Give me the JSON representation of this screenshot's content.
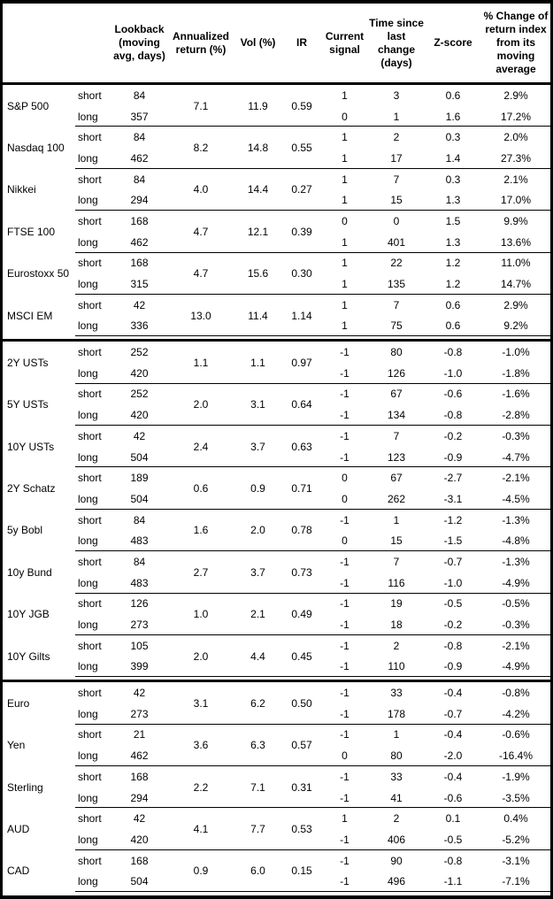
{
  "table": {
    "headers": {
      "lookback": "Lookback (moving avg, days)",
      "annualized": "Annualized return (%)",
      "vol": "Vol (%)",
      "ir": "IR",
      "signal": "Current signal",
      "time": "Time since last change (days)",
      "zscore": "Z-score",
      "pct": "% Change of return index from its moving average"
    },
    "sub_labels": {
      "short": "short",
      "long": "long"
    },
    "sections": [
      {
        "groups": [
          {
            "name": "S&P 500",
            "annualized": "7.1",
            "vol": "11.9",
            "ir": "0.59",
            "short": {
              "lookback": "84",
              "signal": "1",
              "time": "3",
              "zscore": "0.6",
              "pct": "2.9%"
            },
            "long": {
              "lookback": "357",
              "signal": "0",
              "time": "1",
              "zscore": "1.6",
              "pct": "17.2%"
            }
          },
          {
            "name": "Nasdaq 100",
            "annualized": "8.2",
            "vol": "14.8",
            "ir": "0.55",
            "short": {
              "lookback": "84",
              "signal": "1",
              "time": "2",
              "zscore": "0.3",
              "pct": "2.0%"
            },
            "long": {
              "lookback": "462",
              "signal": "1",
              "time": "17",
              "zscore": "1.4",
              "pct": "27.3%"
            }
          },
          {
            "name": "Nikkei",
            "annualized": "4.0",
            "vol": "14.4",
            "ir": "0.27",
            "short": {
              "lookback": "84",
              "signal": "1",
              "time": "7",
              "zscore": "0.3",
              "pct": "2.1%"
            },
            "long": {
              "lookback": "294",
              "signal": "1",
              "time": "15",
              "zscore": "1.3",
              "pct": "17.0%"
            }
          },
          {
            "name": "FTSE 100",
            "annualized": "4.7",
            "vol": "12.1",
            "ir": "0.39",
            "short": {
              "lookback": "168",
              "signal": "0",
              "time": "0",
              "zscore": "1.5",
              "pct": "9.9%"
            },
            "long": {
              "lookback": "462",
              "signal": "1",
              "time": "401",
              "zscore": "1.3",
              "pct": "13.6%"
            }
          },
          {
            "name": "Eurostoxx 50",
            "annualized": "4.7",
            "vol": "15.6",
            "ir": "0.30",
            "short": {
              "lookback": "168",
              "signal": "1",
              "time": "22",
              "zscore": "1.2",
              "pct": "11.0%"
            },
            "long": {
              "lookback": "315",
              "signal": "1",
              "time": "135",
              "zscore": "1.2",
              "pct": "14.7%"
            }
          },
          {
            "name": "MSCI EM",
            "annualized": "13.0",
            "vol": "11.4",
            "ir": "1.14",
            "short": {
              "lookback": "42",
              "signal": "1",
              "time": "7",
              "zscore": "0.6",
              "pct": "2.9%"
            },
            "long": {
              "lookback": "336",
              "signal": "1",
              "time": "75",
              "zscore": "0.6",
              "pct": "9.2%"
            }
          }
        ]
      },
      {
        "groups": [
          {
            "name": "2Y USTs",
            "annualized": "1.1",
            "vol": "1.1",
            "ir": "0.97",
            "short": {
              "lookback": "252",
              "signal": "-1",
              "time": "80",
              "zscore": "-0.8",
              "pct": "-1.0%"
            },
            "long": {
              "lookback": "420",
              "signal": "-1",
              "time": "126",
              "zscore": "-1.0",
              "pct": "-1.8%"
            }
          },
          {
            "name": "5Y USTs",
            "annualized": "2.0",
            "vol": "3.1",
            "ir": "0.64",
            "short": {
              "lookback": "252",
              "signal": "-1",
              "time": "67",
              "zscore": "-0.6",
              "pct": "-1.6%"
            },
            "long": {
              "lookback": "420",
              "signal": "-1",
              "time": "134",
              "zscore": "-0.8",
              "pct": "-2.8%"
            }
          },
          {
            "name": "10Y USTs",
            "annualized": "2.4",
            "vol": "3.7",
            "ir": "0.63",
            "short": {
              "lookback": "42",
              "signal": "-1",
              "time": "7",
              "zscore": "-0.2",
              "pct": "-0.3%"
            },
            "long": {
              "lookback": "504",
              "signal": "-1",
              "time": "123",
              "zscore": "-0.9",
              "pct": "-4.7%"
            }
          },
          {
            "name": "2Y Schatz",
            "annualized": "0.6",
            "vol": "0.9",
            "ir": "0.71",
            "short": {
              "lookback": "189",
              "signal": "0",
              "time": "67",
              "zscore": "-2.7",
              "pct": "-2.1%"
            },
            "long": {
              "lookback": "504",
              "signal": "0",
              "time": "262",
              "zscore": "-3.1",
              "pct": "-4.5%"
            }
          },
          {
            "name": "5y Bobl",
            "annualized": "1.6",
            "vol": "2.0",
            "ir": "0.78",
            "short": {
              "lookback": "84",
              "signal": "-1",
              "time": "1",
              "zscore": "-1.2",
              "pct": "-1.3%"
            },
            "long": {
              "lookback": "483",
              "signal": "0",
              "time": "15",
              "zscore": "-1.5",
              "pct": "-4.8%"
            }
          },
          {
            "name": "10y Bund",
            "annualized": "2.7",
            "vol": "3.7",
            "ir": "0.73",
            "short": {
              "lookback": "84",
              "signal": "-1",
              "time": "7",
              "zscore": "-0.7",
              "pct": "-1.3%"
            },
            "long": {
              "lookback": "483",
              "signal": "-1",
              "time": "116",
              "zscore": "-1.0",
              "pct": "-4.9%"
            }
          },
          {
            "name": "10Y JGB",
            "annualized": "1.0",
            "vol": "2.1",
            "ir": "0.49",
            "short": {
              "lookback": "126",
              "signal": "-1",
              "time": "19",
              "zscore": "-0.5",
              "pct": "-0.5%"
            },
            "long": {
              "lookback": "273",
              "signal": "-1",
              "time": "18",
              "zscore": "-0.2",
              "pct": "-0.3%"
            }
          },
          {
            "name": "10Y Gilts",
            "annualized": "2.0",
            "vol": "4.4",
            "ir": "0.45",
            "short": {
              "lookback": "105",
              "signal": "-1",
              "time": "2",
              "zscore": "-0.8",
              "pct": "-2.1%"
            },
            "long": {
              "lookback": "399",
              "signal": "-1",
              "time": "110",
              "zscore": "-0.9",
              "pct": "-4.9%"
            }
          }
        ]
      },
      {
        "groups": [
          {
            "name": "Euro",
            "annualized": "3.1",
            "vol": "6.2",
            "ir": "0.50",
            "short": {
              "lookback": "42",
              "signal": "-1",
              "time": "33",
              "zscore": "-0.4",
              "pct": "-0.8%"
            },
            "long": {
              "lookback": "273",
              "signal": "-1",
              "time": "178",
              "zscore": "-0.7",
              "pct": "-4.2%"
            }
          },
          {
            "name": "Yen",
            "annualized": "3.6",
            "vol": "6.3",
            "ir": "0.57",
            "short": {
              "lookback": "21",
              "signal": "-1",
              "time": "1",
              "zscore": "-0.4",
              "pct": "-0.6%"
            },
            "long": {
              "lookback": "462",
              "signal": "0",
              "time": "80",
              "zscore": "-2.0",
              "pct": "-16.4%"
            }
          },
          {
            "name": "Sterling",
            "annualized": "2.2",
            "vol": "7.1",
            "ir": "0.31",
            "short": {
              "lookback": "168",
              "signal": "-1",
              "time": "33",
              "zscore": "-0.4",
              "pct": "-1.9%"
            },
            "long": {
              "lookback": "294",
              "signal": "-1",
              "time": "41",
              "zscore": "-0.6",
              "pct": "-3.5%"
            }
          },
          {
            "name": "AUD",
            "annualized": "4.1",
            "vol": "7.7",
            "ir": "0.53",
            "short": {
              "lookback": "42",
              "signal": "1",
              "time": "2",
              "zscore": "0.1",
              "pct": "0.4%"
            },
            "long": {
              "lookback": "420",
              "signal": "-1",
              "time": "406",
              "zscore": "-0.5",
              "pct": "-5.2%"
            }
          },
          {
            "name": "CAD",
            "annualized": "0.9",
            "vol": "6.0",
            "ir": "0.15",
            "short": {
              "lookback": "168",
              "signal": "-1",
              "time": "90",
              "zscore": "-0.8",
              "pct": "-3.1%"
            },
            "long": {
              "lookback": "504",
              "signal": "-1",
              "time": "496",
              "zscore": "-1.1",
              "pct": "-7.1%"
            }
          }
        ]
      }
    ]
  }
}
